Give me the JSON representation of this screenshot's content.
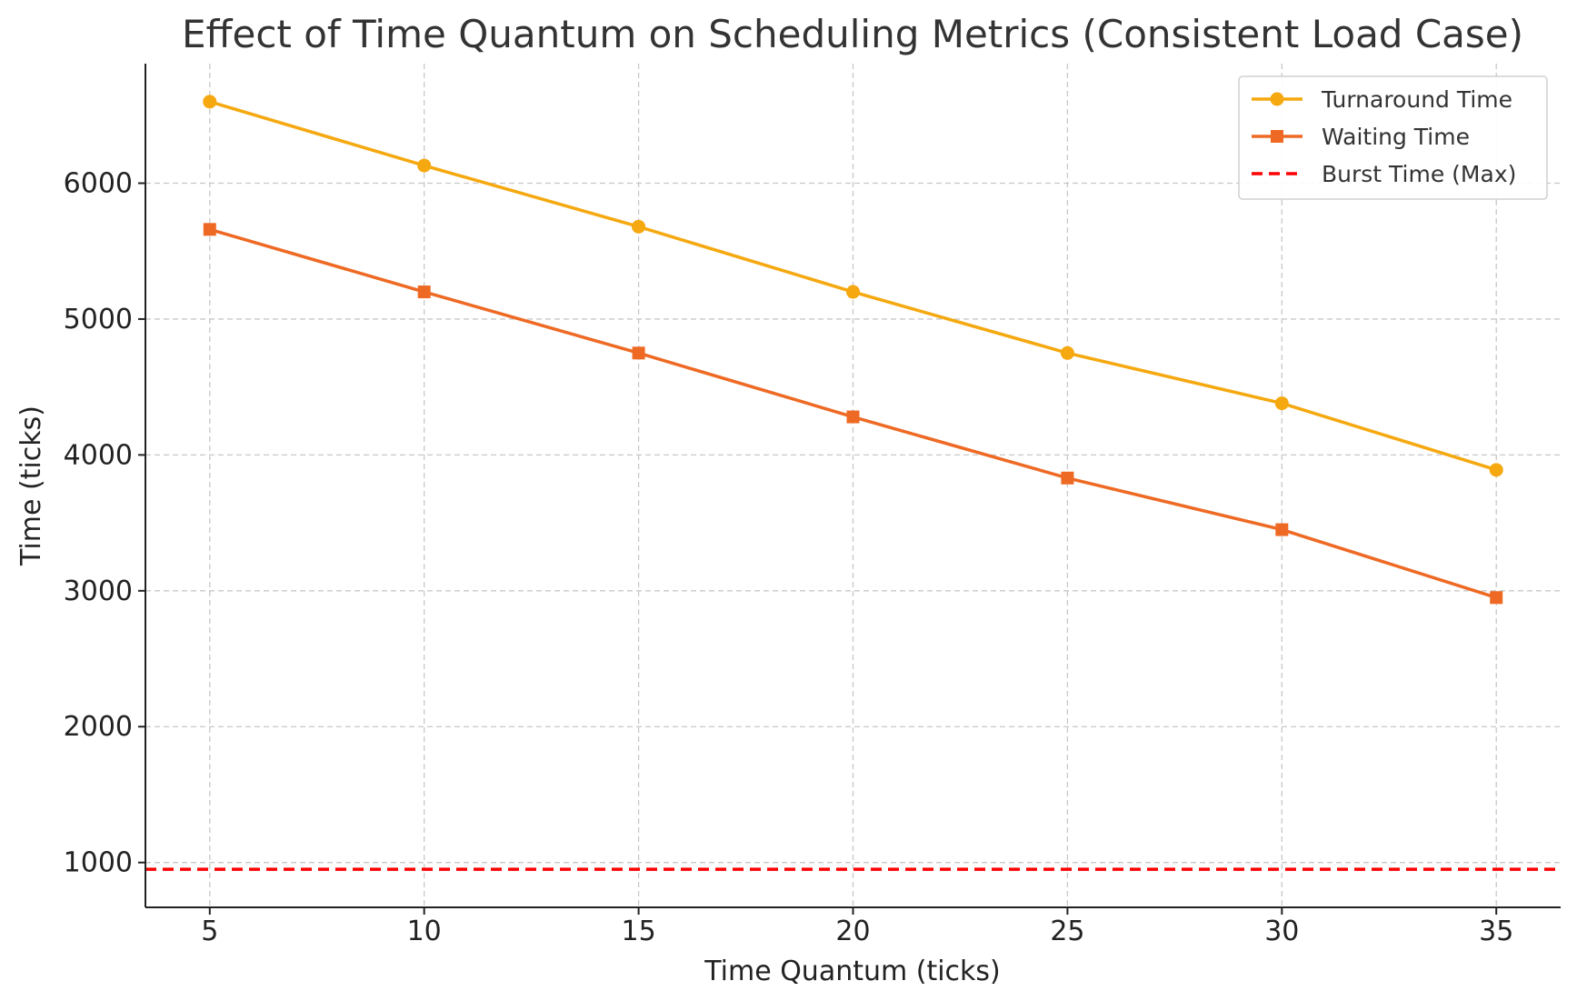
{
  "chart_data": {
    "type": "line",
    "title": "Effect of Time Quantum on Scheduling Metrics (Consistent Load Case)",
    "xlabel": "Time Quantum (ticks)",
    "ylabel": "Time (ticks)",
    "x": [
      5,
      10,
      15,
      20,
      25,
      30,
      35
    ],
    "x_ticks": [
      "5",
      "10",
      "15",
      "20",
      "25",
      "30",
      "35"
    ],
    "y_ticks": [
      "1000",
      "2000",
      "3000",
      "4000",
      "5000",
      "6000"
    ],
    "xlim": [
      3.5,
      36.5
    ],
    "ylim": [
      670,
      6880
    ],
    "grid": true,
    "legend_position": "top-right",
    "series": [
      {
        "name": "Turnaround Time",
        "marker": "circle",
        "color": "#f5a80f",
        "values": [
          6600,
          6130,
          5680,
          5200,
          4750,
          4380,
          3890
        ]
      },
      {
        "name": "Waiting Time",
        "marker": "square",
        "color": "#ee6a24",
        "values": [
          5660,
          5200,
          4750,
          4280,
          3830,
          3450,
          2950
        ]
      }
    ],
    "reference_lines": [
      {
        "name": "Burst Time (Max)",
        "orientation": "horizontal",
        "style": "dashed",
        "color": "#ff0000",
        "value": 950
      }
    ]
  }
}
